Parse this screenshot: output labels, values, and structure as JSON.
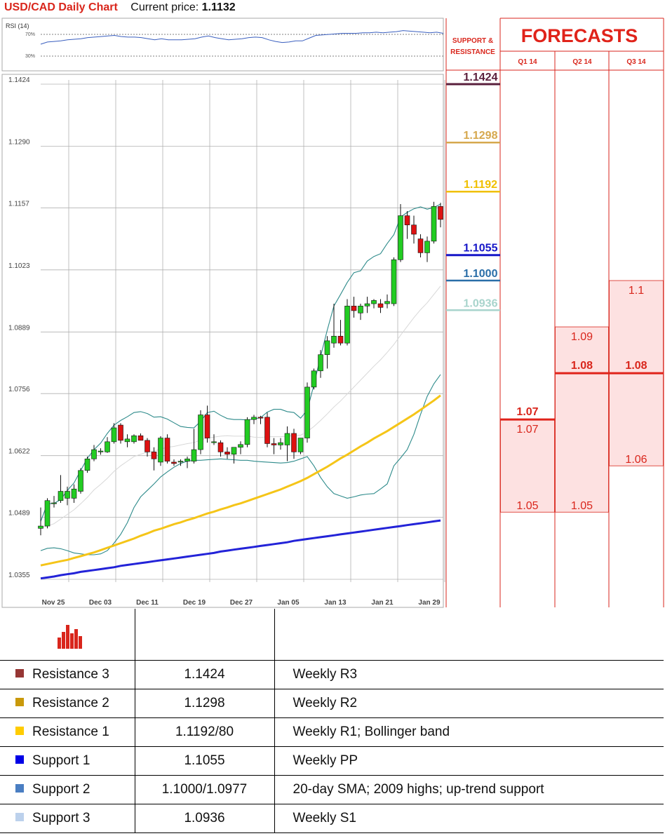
{
  "header": {
    "title": "USD/CAD Daily Chart",
    "price_label": "Current price:",
    "price_value": "1.1132"
  },
  "rsi": {
    "label": "RSI (14)",
    "levels": [
      "70%",
      "30%"
    ]
  },
  "chart_data": {
    "type": "candlestick",
    "ylim": [
      1.0355,
      1.1424
    ],
    "ytick_labels": [
      "1.1424",
      "1.1290",
      "1.1157",
      "1.1023",
      "1.0889",
      "1.0756",
      "1.0622",
      "1.0489",
      "1.0355"
    ],
    "xtick_labels": [
      "Nov 25",
      "Dec 03",
      "Dec 11",
      "Dec 19",
      "Dec 27",
      "Jan 05",
      "Jan 13",
      "Jan 21",
      "Jan 29"
    ],
    "candles": [
      [
        1.0465,
        1.051,
        1.045,
        1.047
      ],
      [
        1.047,
        1.053,
        1.0465,
        1.0525
      ],
      [
        1.052,
        1.0535,
        1.051,
        1.052
      ],
      [
        1.0525,
        1.058,
        1.052,
        1.0545
      ],
      [
        1.053,
        1.0555,
        1.0515,
        1.0545
      ],
      [
        1.053,
        1.056,
        1.052,
        1.055
      ],
      [
        1.0545,
        1.0595,
        1.054,
        1.059
      ],
      [
        1.059,
        1.062,
        1.0585,
        1.0615
      ],
      [
        1.0615,
        1.0645,
        1.061,
        1.0635
      ],
      [
        1.063,
        1.0638,
        1.0624,
        1.0632
      ],
      [
        1.063,
        1.0662,
        1.0628,
        1.0652
      ],
      [
        1.0652,
        1.0692,
        1.0648,
        1.0682
      ],
      [
        1.0688,
        1.0692,
        1.0648,
        1.0655
      ],
      [
        1.0652,
        1.0668,
        1.064,
        1.0658
      ],
      [
        1.0652,
        1.0668,
        1.0648,
        1.0665
      ],
      [
        1.0665,
        1.067,
        1.0655,
        1.0655
      ],
      [
        1.0655,
        1.066,
        1.062,
        1.063
      ],
      [
        1.063,
        1.064,
        1.059,
        1.0615
      ],
      [
        1.0608,
        1.0664,
        1.06,
        1.066
      ],
      [
        1.066,
        1.0668,
        1.0605,
        1.061
      ],
      [
        1.0608,
        1.0614,
        1.06,
        1.0605
      ],
      [
        1.0608,
        1.0614,
        1.06,
        1.061
      ],
      [
        1.061,
        1.062,
        1.0595,
        1.0615
      ],
      [
        1.061,
        1.068,
        1.0605,
        1.0635
      ],
      [
        1.0635,
        1.072,
        1.0625,
        1.071
      ],
      [
        1.071,
        1.073,
        1.065,
        1.066
      ],
      [
        1.065,
        1.0668,
        1.0645,
        1.0652
      ],
      [
        1.065,
        1.0655,
        1.062,
        1.063
      ],
      [
        1.063,
        1.064,
        1.0615,
        1.0625
      ],
      [
        1.0625,
        1.064,
        1.0605,
        1.064
      ],
      [
        1.064,
        1.0653,
        1.0625,
        1.0646
      ],
      [
        1.0646,
        1.0705,
        1.064,
        1.07
      ],
      [
        1.07,
        1.071,
        1.069,
        1.0705
      ],
      [
        1.0705,
        1.0708,
        1.069,
        1.0703
      ],
      [
        1.0705,
        1.0715,
        1.064,
        1.0648
      ],
      [
        1.0648,
        1.066,
        1.0625,
        1.0645
      ],
      [
        1.0645,
        1.066,
        1.0635,
        1.065
      ],
      [
        1.0645,
        1.0685,
        1.061,
        1.067
      ],
      [
        1.067,
        1.068,
        1.0615,
        1.063
      ],
      [
        1.063,
        1.066,
        1.0625,
        1.066
      ],
      [
        1.066,
        1.078,
        1.065,
        1.077
      ],
      [
        1.077,
        1.081,
        1.0765,
        1.0805
      ],
      [
        1.0805,
        1.085,
        1.079,
        1.084
      ],
      [
        1.084,
        1.088,
        1.081,
        1.087
      ],
      [
        1.0865,
        1.095,
        1.0855,
        1.088
      ],
      [
        1.088,
        1.0915,
        1.086,
        1.0865
      ],
      [
        1.0865,
        1.096,
        1.086,
        1.0945
      ],
      [
        1.0945,
        1.0965,
        1.092,
        1.0935
      ],
      [
        1.093,
        1.095,
        1.0915,
        1.0945
      ],
      [
        1.0945,
        1.0965,
        1.093,
        1.095
      ],
      [
        1.095,
        1.096,
        1.094,
        1.0957
      ],
      [
        1.095,
        1.096,
        1.093,
        1.0942
      ],
      [
        1.095,
        1.097,
        1.094,
        1.0955
      ],
      [
        1.095,
        1.105,
        1.0945,
        1.1045
      ],
      [
        1.1045,
        1.1165,
        1.104,
        1.114
      ],
      [
        1.114,
        1.115,
        1.109,
        1.112
      ],
      [
        1.112,
        1.114,
        1.108,
        1.11
      ],
      [
        1.109,
        1.11,
        1.105,
        1.106
      ],
      [
        1.106,
        1.1095,
        1.104,
        1.1085
      ],
      [
        1.1085,
        1.117,
        1.108,
        1.116
      ],
      [
        1.116,
        1.1168,
        1.1115,
        1.1132
      ]
    ],
    "series": [
      {
        "name": "Bollinger upper",
        "color": "#2e8b8b",
        "values": [
          1.048,
          1.0518,
          1.0519,
          1.0527,
          1.0547,
          1.0563,
          1.059,
          1.0616,
          1.0635,
          1.0649,
          1.067,
          1.0688,
          1.0698,
          1.0706,
          1.0715,
          1.0717,
          1.0713,
          1.0705,
          1.0706,
          1.0701,
          1.0693,
          1.0685,
          1.0683,
          1.0682,
          1.0696,
          1.0715,
          1.0718,
          1.0709,
          1.0702,
          1.07,
          1.07,
          1.0699,
          1.0701,
          1.0704,
          1.0716,
          1.0722,
          1.0722,
          1.0717,
          1.0715,
          1.0703,
          1.072,
          1.0775,
          1.0836,
          1.0893,
          1.0945,
          1.097,
          1.0996,
          1.1017,
          1.1021,
          1.1042,
          1.1052,
          1.1058,
          1.108,
          1.1099,
          1.1137,
          1.1147,
          1.1155,
          1.1159,
          1.1154,
          1.1158,
          1.1165
        ]
      },
      {
        "name": "20-day SMA",
        "color": "#d8d8d8",
        "values": [
          1.0467,
          1.047,
          1.0475,
          1.0485,
          1.0495,
          1.0505,
          1.0518,
          1.0532,
          1.0548,
          1.056,
          1.0573,
          1.0588,
          1.06,
          1.061,
          1.062,
          1.0625,
          1.063,
          1.0632,
          1.0636,
          1.064,
          1.0642,
          1.0645,
          1.0648,
          1.065,
          1.0656,
          1.066,
          1.0662,
          1.0664,
          1.0665,
          1.0664,
          1.0664,
          1.0664,
          1.0662,
          1.0661,
          1.0663,
          1.0663,
          1.0663,
          1.0664,
          1.0665,
          1.0666,
          1.0674,
          1.0685,
          1.0698,
          1.0712,
          1.0727,
          1.074,
          1.0755,
          1.077,
          1.0785,
          1.08,
          1.0815,
          1.0829,
          1.0845,
          1.0862,
          1.0882,
          1.0901,
          1.092,
          1.0937,
          1.0952,
          1.097,
          1.0988
        ]
      },
      {
        "name": "Bollinger lower",
        "color": "#2e8b8b",
        "values": [
          1.0417,
          1.0422,
          1.0423,
          1.0421,
          1.0417,
          1.0412,
          1.041,
          1.0408,
          1.0408,
          1.041,
          1.0417,
          1.0433,
          1.0452,
          1.0477,
          1.051,
          1.0533,
          1.0547,
          1.0561,
          1.0576,
          1.0587,
          1.0597,
          1.0605,
          1.061,
          1.0612,
          1.0612,
          1.0613,
          1.0614,
          1.0615,
          1.0614,
          1.0613,
          1.0612,
          1.0612,
          1.061,
          1.0609,
          1.0608,
          1.0607,
          1.0606,
          1.0607,
          1.061,
          1.0615,
          1.062,
          1.06,
          1.0575,
          1.0555,
          1.054,
          1.0535,
          1.053,
          1.0533,
          1.0537,
          1.0539,
          1.054,
          1.055,
          1.0561,
          1.06,
          1.0617,
          1.0635,
          1.0668,
          1.0711,
          1.075,
          1.0777,
          1.0797
        ]
      },
      {
        "name": "50-day SMA",
        "color": "#f5c518",
        "values": [
          1.0385,
          1.0388,
          1.0391,
          1.0394,
          1.0397,
          1.0401,
          1.0405,
          1.0409,
          1.0413,
          1.0418,
          1.0423,
          1.0428,
          1.0433,
          1.0438,
          1.0443,
          1.0449,
          1.0454,
          1.046,
          1.0464,
          1.0469,
          1.0474,
          1.0478,
          1.0483,
          1.0487,
          1.0492,
          1.0497,
          1.0501,
          1.0506,
          1.051,
          1.0515,
          1.0519,
          1.0524,
          1.0529,
          1.0534,
          1.0539,
          1.0544,
          1.0549,
          1.0555,
          1.0561,
          1.0567,
          1.0574,
          1.0582,
          1.059,
          1.0598,
          1.0607,
          1.0616,
          1.0624,
          1.0633,
          1.0642,
          1.065,
          1.0659,
          1.0667,
          1.0675,
          1.0684,
          1.0693,
          1.0702,
          1.0711,
          1.0721,
          1.0731,
          1.0741,
          1.0752
        ]
      },
      {
        "name": "200-day SMA",
        "color": "#2323d8",
        "values": [
          1.0357,
          1.0359,
          1.0361,
          1.0364,
          1.0366,
          1.0368,
          1.0371,
          1.0373,
          1.0375,
          1.0377,
          1.0379,
          1.0381,
          1.0384,
          1.0386,
          1.0388,
          1.039,
          1.0392,
          1.0394,
          1.0396,
          1.0398,
          1.04,
          1.0402,
          1.0404,
          1.0406,
          1.0408,
          1.041,
          1.0412,
          1.0415,
          1.0417,
          1.0419,
          1.0421,
          1.0423,
          1.0425,
          1.0427,
          1.0429,
          1.0431,
          1.0433,
          1.0435,
          1.0438,
          1.044,
          1.0442,
          1.0444,
          1.0446,
          1.0448,
          1.045,
          1.0452,
          1.0454,
          1.0456,
          1.0458,
          1.046,
          1.0462,
          1.0464,
          1.0466,
          1.0468,
          1.047,
          1.0472,
          1.0474,
          1.0476,
          1.0478,
          1.048,
          1.0482
        ]
      }
    ],
    "rsi_values": [
      52,
      56,
      57,
      58,
      60,
      61,
      62,
      64,
      65,
      66,
      67,
      68,
      66,
      65,
      65,
      64,
      62,
      60,
      62,
      60,
      60,
      60,
      61,
      62,
      65,
      67,
      64,
      62,
      60,
      61,
      62,
      64,
      65,
      64,
      60,
      57,
      55,
      56,
      58,
      58,
      63,
      68,
      69,
      70,
      71,
      72,
      72,
      72,
      73,
      73,
      74,
      73,
      74,
      75,
      77,
      76,
      75,
      74,
      73,
      74,
      72
    ]
  },
  "levels_panel": {
    "header": "SUPPORT & RESISTANCE",
    "levels": [
      {
        "label": "1.1424",
        "value": 1.1424,
        "color": "#5a1f3c"
      },
      {
        "label": "1.1298",
        "value": 1.1298,
        "color": "#d6a84e"
      },
      {
        "label": "1.1192",
        "value": 1.1192,
        "color": "#f0c000"
      },
      {
        "label": "1.1055",
        "value": 1.1055,
        "color": "#1515c8"
      },
      {
        "label": "1.1000",
        "value": 1.1,
        "color": "#2a6ea8"
      },
      {
        "label": "1.0936",
        "value": 1.0936,
        "color": "#a8d4cc"
      }
    ]
  },
  "forecasts": {
    "title": "FORECASTS",
    "columns": [
      {
        "label": "Q1 14",
        "low": 1.05,
        "high": 1.07,
        "median": 1.07,
        "low_label": "1.05",
        "high_label": "1.07",
        "median_label": "1.07"
      },
      {
        "label": "Q2 14",
        "low": 1.05,
        "high": 1.09,
        "median": 1.08,
        "low_label": "1.05",
        "high_label": "1.09",
        "median_label": "1.08"
      },
      {
        "label": "Q3 14",
        "low": 1.06,
        "high": 1.1,
        "median": 1.08,
        "low_label": "1.06",
        "high_label": "1.1",
        "median_label": "1.08"
      }
    ]
  },
  "levels_table": {
    "rows": [
      {
        "name": "Resistance 3",
        "value": "1.1424",
        "note": "Weekly R3",
        "color": "#963634"
      },
      {
        "name": "Resistance 2",
        "value": "1.1298",
        "note": "Weekly R2",
        "color": "#c9990a"
      },
      {
        "name": "Resistance 1",
        "value": "1.1192/80",
        "note": "Weekly R1; Bollinger band",
        "color": "#ffcc00"
      },
      {
        "name": "Support 1",
        "value": "1.1055",
        "note": "Weekly PP",
        "color": "#0000e6"
      },
      {
        "name": "Support 2",
        "value": "1.1000/1.0977",
        "note": "20-day SMA; 2009 highs; up-trend support",
        "color": "#4a7ec2"
      },
      {
        "name": "Support 3",
        "value": "1.0936",
        "note": "Weekly S1",
        "color": "#bcd1ec"
      }
    ]
  }
}
